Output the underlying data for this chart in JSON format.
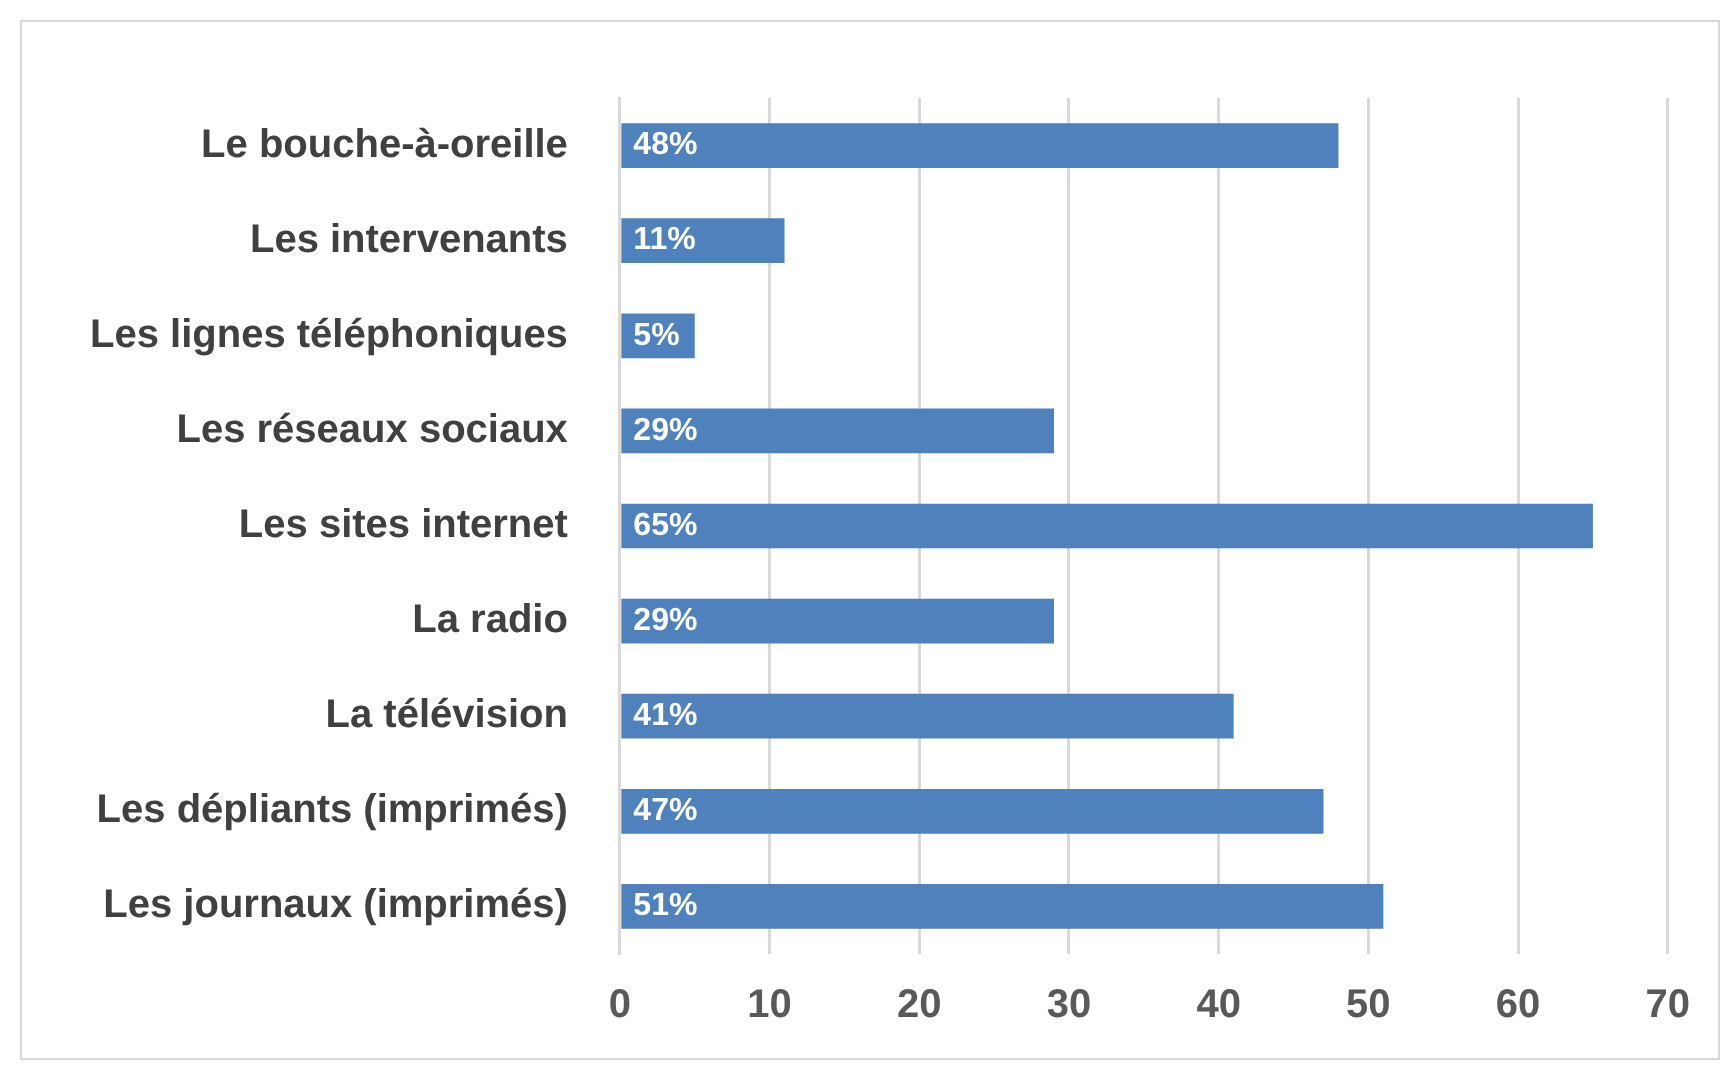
{
  "chart_data": {
    "type": "bar",
    "orientation": "horizontal",
    "categories": [
      "Le bouche-à-oreille",
      "Les intervenants",
      "Les lignes téléphoniques",
      "Les réseaux sociaux",
      "Les sites internet",
      "La radio",
      "La télévision",
      "Les dépliants (imprimés)",
      "Les journaux (imprimés)"
    ],
    "values": [
      48,
      11,
      5,
      29,
      65,
      29,
      41,
      47,
      51
    ],
    "value_labels": [
      "48%",
      "11%",
      "5%",
      "29%",
      "65%",
      "29%",
      "41%",
      "47%",
      "51%"
    ],
    "color": "#4f81bd",
    "xlim": [
      0,
      70
    ],
    "xticks": [
      0,
      10,
      20,
      30,
      40,
      50,
      60,
      70
    ],
    "grid": "x",
    "legend": false
  }
}
